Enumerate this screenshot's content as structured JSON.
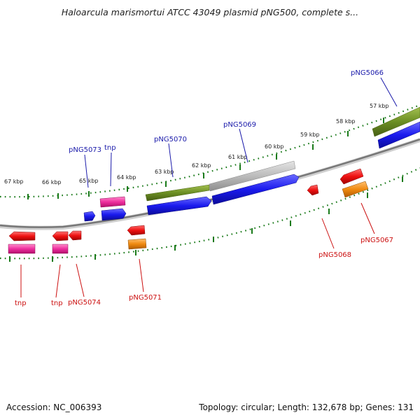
{
  "title": "Haloarcula marismortui ATCC 43049 plasmid pNG500, complete s...",
  "footer": {
    "accession": "Accession: NC_006393",
    "summary": "Topology: circular; Length: 132,678 bp; Genes: 131"
  },
  "kbp_labels": [
    "67 kbp",
    "66 kbp",
    "65 kbp",
    "64 kbp",
    "63 kbp",
    "62 kbp",
    "61 kbp",
    "60 kbp",
    "59 kbp",
    "58 kbp",
    "57 kbp"
  ],
  "gene_labels": {
    "forward": [
      "pNG5073",
      "tnp",
      "pNG5070",
      "pNG5069",
      "pNG5066"
    ],
    "reverse": [
      "tnp",
      "tnp",
      "pNG5074",
      "pNG5071",
      "pNG5068",
      "pNG5067"
    ]
  },
  "colors": {
    "forward_label": "#1a1aaa",
    "reverse_label": "#cc1111",
    "backbone": "#888888",
    "tick": "#1a7a1a",
    "cds_blue": "#1a1aee",
    "cds_red": "#ee1111",
    "cds_pink": "#ee2f9e",
    "cds_orange": "#f08a10",
    "region_green": "#6b8e23",
    "region_grey": "#bbbbbb"
  }
}
